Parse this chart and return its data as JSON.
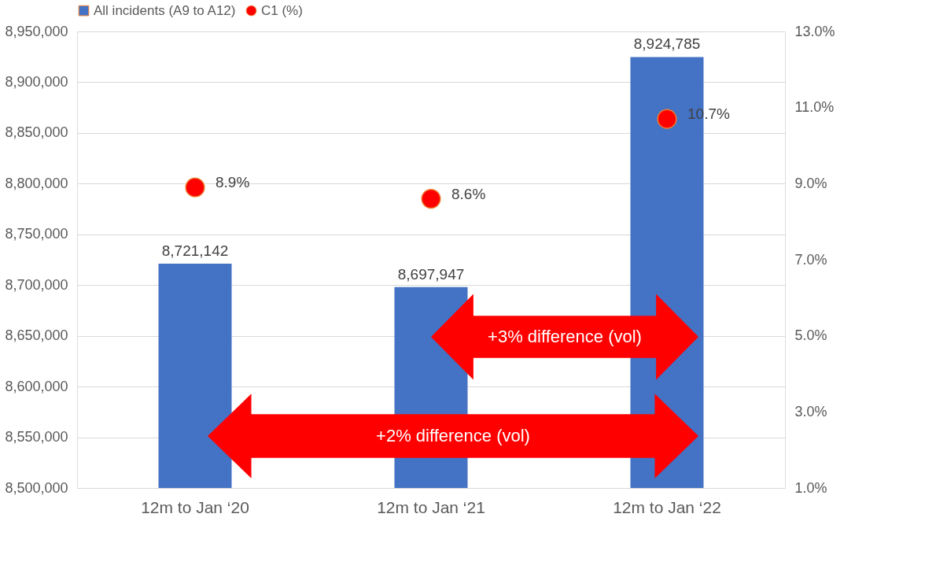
{
  "chart_data": {
    "type": "bar",
    "categories": [
      "12m to Jan ‘20",
      "12m to Jan ‘21",
      "12m to Jan ‘22"
    ],
    "series": [
      {
        "name": "All incidents (A9 to A12)",
        "type": "bar",
        "color": "#4472c4",
        "values": [
          8721142,
          8697947,
          8924785
        ],
        "value_labels": [
          "8,721,142",
          "8,697,947",
          "8,924,785"
        ]
      },
      {
        "name": "C1 (%)",
        "type": "scatter",
        "axis": "y2",
        "color": "#ff0000",
        "values": [
          8.9,
          8.6,
          10.7
        ],
        "value_labels": [
          "8.9%",
          "8.6%",
          "10.7%"
        ]
      }
    ],
    "ylim": [
      8500000,
      8950000
    ],
    "yticks": [
      {
        "value": 8500000,
        "label": "8,500,000"
      },
      {
        "value": 8550000,
        "label": "8,550,000"
      },
      {
        "value": 8600000,
        "label": "8,600,000"
      },
      {
        "value": 8650000,
        "label": "8,650,000"
      },
      {
        "value": 8700000,
        "label": "8,700,000"
      },
      {
        "value": 8750000,
        "label": "8,750,000"
      },
      {
        "value": 8800000,
        "label": "8,800,000"
      },
      {
        "value": 8850000,
        "label": "8,850,000"
      },
      {
        "value": 8900000,
        "label": "8,900,000"
      },
      {
        "value": 8950000,
        "label": "8,950,000"
      }
    ],
    "y2lim": [
      1,
      13
    ],
    "y2ticks": [
      {
        "value": 1,
        "label": "1.0%"
      },
      {
        "value": 3,
        "label": "3.0%"
      },
      {
        "value": 5,
        "label": "5.0%"
      },
      {
        "value": 7,
        "label": "7.0%"
      },
      {
        "value": 9,
        "label": "9.0%"
      },
      {
        "value": 11,
        "label": "11.0%"
      },
      {
        "value": 13,
        "label": "13.0%"
      }
    ],
    "grid": "y",
    "legend": "top",
    "marker": "circle",
    "annotations": [
      "+3% difference (vol)",
      "+2% difference (vol)"
    ]
  }
}
